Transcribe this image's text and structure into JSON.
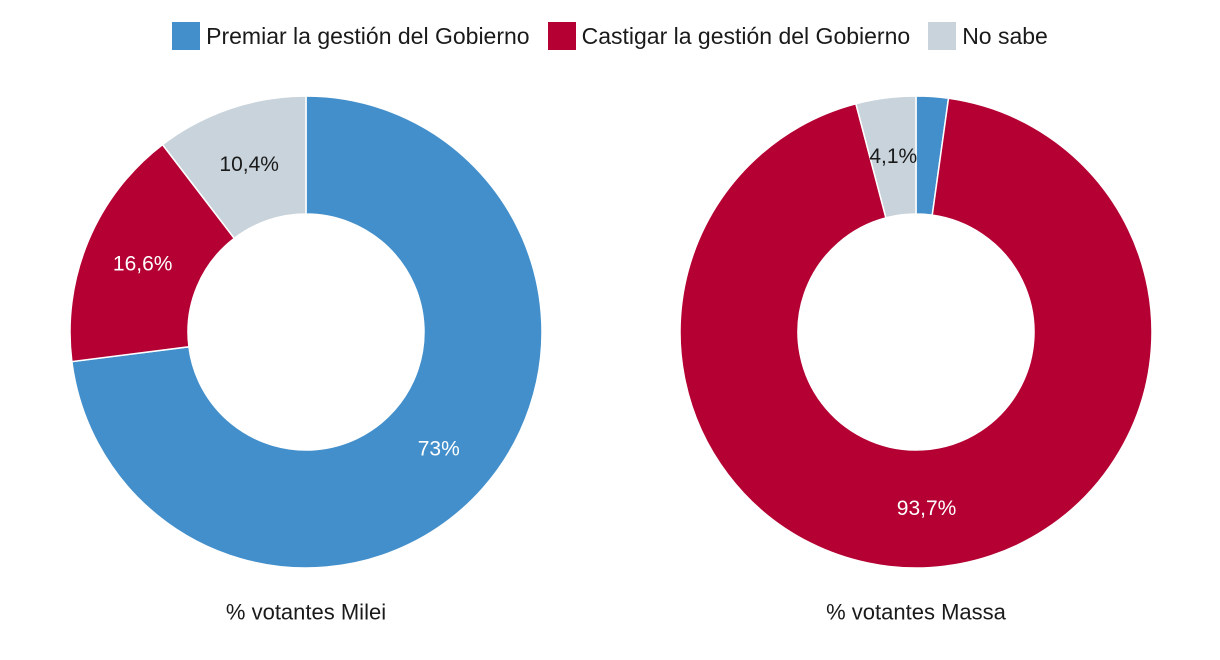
{
  "legend": [
    {
      "label": "Premiar la gestión del Gobierno",
      "color": "#428fcb"
    },
    {
      "label": "Castigar la gestión del Gobierno",
      "color": "#b40032"
    },
    {
      "label": "No sabe",
      "color": "#c8d3db"
    }
  ],
  "chart_data": [
    {
      "type": "pie",
      "variant": "donut",
      "caption": "% votantes Milei",
      "categories": [
        "Premiar la gestión del Gobierno",
        "Castigar la gestión del Gobierno",
        "No sabe"
      ],
      "values": [
        73,
        16.6,
        10.4
      ],
      "labels": [
        "73%",
        "16,6%",
        "10,4%"
      ]
    },
    {
      "type": "pie",
      "variant": "donut",
      "caption": "% votantes Massa",
      "categories": [
        "Premiar la gestión del Gobierno",
        "Castigar la gestión del Gobierno",
        "No sabe"
      ],
      "values": [
        2.2,
        93.7,
        4.1
      ],
      "labels": [
        "",
        "93,7%",
        "4,1%"
      ]
    }
  ]
}
